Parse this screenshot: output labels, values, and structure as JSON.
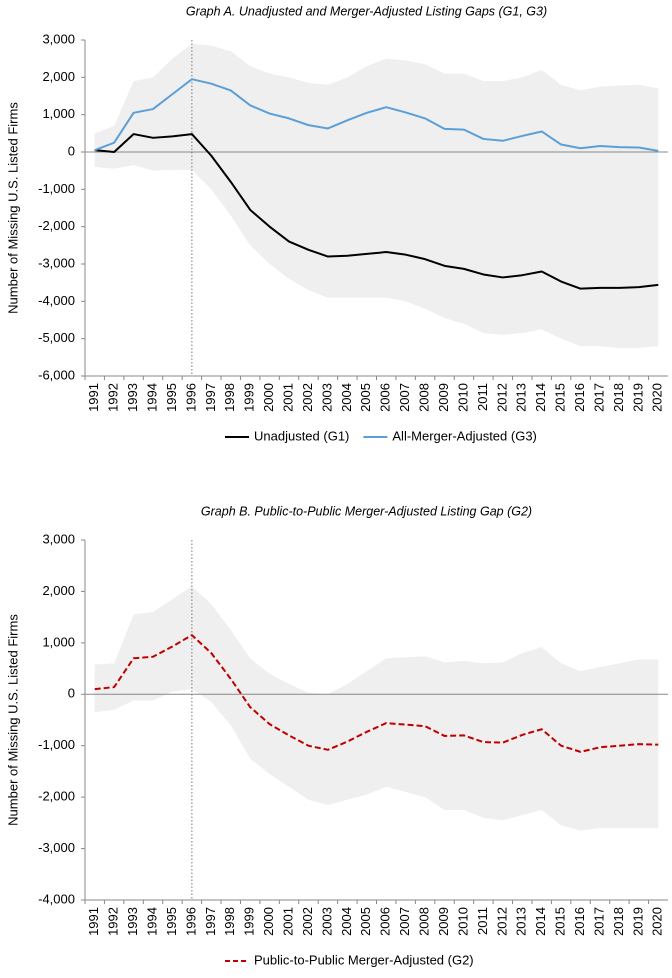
{
  "chart_data": [
    {
      "type": "line",
      "title": "Graph A. Unadjusted and Merger-Adjusted Listing Gaps (G1, G3)",
      "y_label": "Number of Missing U.S. Listed Firms",
      "categories": [
        "1991",
        "1992",
        "1993",
        "1994",
        "1995",
        "1996",
        "1997",
        "1998",
        "1999",
        "2000",
        "2001",
        "2002",
        "2003",
        "2004",
        "2005",
        "2006",
        "2007",
        "2008",
        "2009",
        "2010",
        "2011",
        "2012",
        "2013",
        "2014",
        "2015",
        "2016",
        "2017",
        "2018",
        "2019",
        "2020"
      ],
      "series": [
        {
          "name": "Unadjusted (G1)",
          "color": "#000000",
          "dash": false,
          "values": [
            50,
            0,
            480,
            380,
            420,
            480,
            -100,
            -800,
            -1550,
            -2000,
            -2400,
            -2620,
            -2800,
            -2780,
            -2730,
            -2680,
            -2750,
            -2870,
            -3050,
            -3130,
            -3280,
            -3360,
            -3300,
            -3200,
            -3470,
            -3660,
            -3640,
            -3640,
            -3620,
            -3560
          ]
        },
        {
          "name": "All-Merger-Adjusted (G3)",
          "color": "#5b9fd8",
          "dash": false,
          "values": [
            50,
            250,
            1050,
            1150,
            1550,
            1950,
            1830,
            1650,
            1250,
            1030,
            900,
            720,
            630,
            850,
            1050,
            1200,
            1060,
            900,
            620,
            600,
            350,
            300,
            430,
            550,
            200,
            100,
            160,
            130,
            120,
            30
          ]
        }
      ],
      "band": {
        "color": "#efefef",
        "upper": [
          500,
          700,
          1900,
          2000,
          2500,
          2900,
          2850,
          2700,
          2300,
          2100,
          2000,
          1850,
          1800,
          2000,
          2300,
          2500,
          2450,
          2350,
          2100,
          2100,
          1900,
          1900,
          2000,
          2200,
          1800,
          1650,
          1750,
          1780,
          1800,
          1700
        ],
        "lower": [
          -400,
          -450,
          -350,
          -500,
          -480,
          -480,
          -1000,
          -1700,
          -2500,
          -3000,
          -3400,
          -3700,
          -3900,
          -3900,
          -3900,
          -3900,
          -4000,
          -4200,
          -4450,
          -4600,
          -4850,
          -4900,
          -4850,
          -4750,
          -5000,
          -5200,
          -5200,
          -5250,
          -5250,
          -5200
        ]
      },
      "vline": "1996",
      "ylim": [
        -6000,
        3000
      ],
      "yticks": [
        {
          "value": -6000,
          "label": "-6,000"
        },
        {
          "value": -5000,
          "label": "-5,000"
        },
        {
          "value": -4000,
          "label": "-4,000"
        },
        {
          "value": -3000,
          "label": "-3,000"
        },
        {
          "value": -2000,
          "label": "-2,000"
        },
        {
          "value": -1000,
          "label": "-1,000"
        },
        0,
        {
          "value": 1000,
          "label": "1,000"
        },
        {
          "value": 2000,
          "label": "2,000"
        },
        {
          "value": 3000,
          "label": "3,000"
        }
      ],
      "legend": "bottom"
    },
    {
      "type": "line",
      "title": "Graph B. Public-to-Public Merger-Adjusted Listing Gap (G2)",
      "y_label": "Number of Missing U.S. Listed Firms",
      "categories": [
        "1991",
        "1992",
        "1993",
        "1994",
        "1995",
        "1996",
        "1997",
        "1998",
        "1999",
        "2000",
        "2001",
        "2002",
        "2003",
        "2004",
        "2005",
        "2006",
        "2007",
        "2008",
        "2009",
        "2010",
        "2011",
        "2012",
        "2013",
        "2014",
        "2015",
        "2016",
        "2017",
        "2018",
        "2019",
        "2020"
      ],
      "series": [
        {
          "name": "Public-to-Public Merger-Adjusted (G2)",
          "color": "#c00000",
          "dash": true,
          "values": [
            100,
            140,
            700,
            730,
            930,
            1150,
            800,
            300,
            -250,
            -580,
            -800,
            -1000,
            -1080,
            -920,
            -730,
            -560,
            -590,
            -620,
            -810,
            -800,
            -930,
            -940,
            -790,
            -680,
            -1000,
            -1120,
            -1030,
            -1000,
            -970,
            -980
          ]
        }
      ],
      "band": {
        "color": "#efefef",
        "upper": [
          580,
          600,
          1550,
          1600,
          1850,
          2100,
          1750,
          1250,
          700,
          400,
          200,
          30,
          0,
          200,
          450,
          700,
          720,
          740,
          620,
          650,
          600,
          620,
          800,
          920,
          600,
          450,
          530,
          600,
          680,
          680
        ],
        "lower": [
          -350,
          -300,
          -120,
          -120,
          50,
          100,
          -150,
          -600,
          -1250,
          -1550,
          -1800,
          -2050,
          -2150,
          -2050,
          -1950,
          -1800,
          -1900,
          -2000,
          -2250,
          -2250,
          -2400,
          -2450,
          -2350,
          -2250,
          -2550,
          -2650,
          -2600,
          -2600,
          -2600,
          -2600
        ]
      },
      "vline": "1996",
      "ylim": [
        -4000,
        3000
      ],
      "yticks": [
        {
          "value": -4000,
          "label": "-4,000"
        },
        {
          "value": -3000,
          "label": "-3,000"
        },
        {
          "value": -2000,
          "label": "-2,000"
        },
        {
          "value": -1000,
          "label": "-1,000"
        },
        0,
        {
          "value": 1000,
          "label": "1,000"
        },
        {
          "value": 2000,
          "label": "2,000"
        },
        {
          "value": 3000,
          "label": "3,000"
        }
      ],
      "legend": "bottom"
    }
  ]
}
